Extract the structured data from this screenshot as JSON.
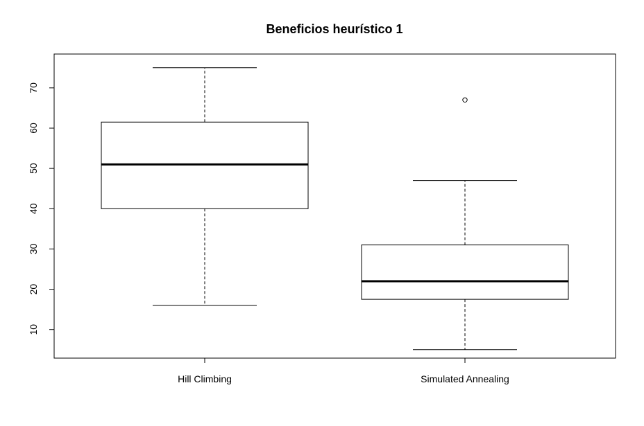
{
  "chart_data": {
    "type": "box",
    "title": "Beneficios heurístico 1",
    "xlabel": "",
    "ylabel": "",
    "ylim": [
      2.9,
      78.4
    ],
    "yticks": [
      10,
      20,
      30,
      40,
      50,
      60,
      70
    ],
    "categories": [
      "Hill Climbing",
      "Simulated Annealing"
    ],
    "boxes": [
      {
        "category": "Hill Climbing",
        "whisker_low": 16,
        "q1": 40,
        "median": 51,
        "q3": 61.5,
        "whisker_high": 75,
        "outliers": []
      },
      {
        "category": "Simulated Annealing",
        "whisker_low": 5,
        "q1": 17.5,
        "median": 22,
        "q3": 31,
        "whisker_high": 47,
        "outliers": [
          67
        ]
      }
    ],
    "grid": false,
    "legend": "none"
  }
}
